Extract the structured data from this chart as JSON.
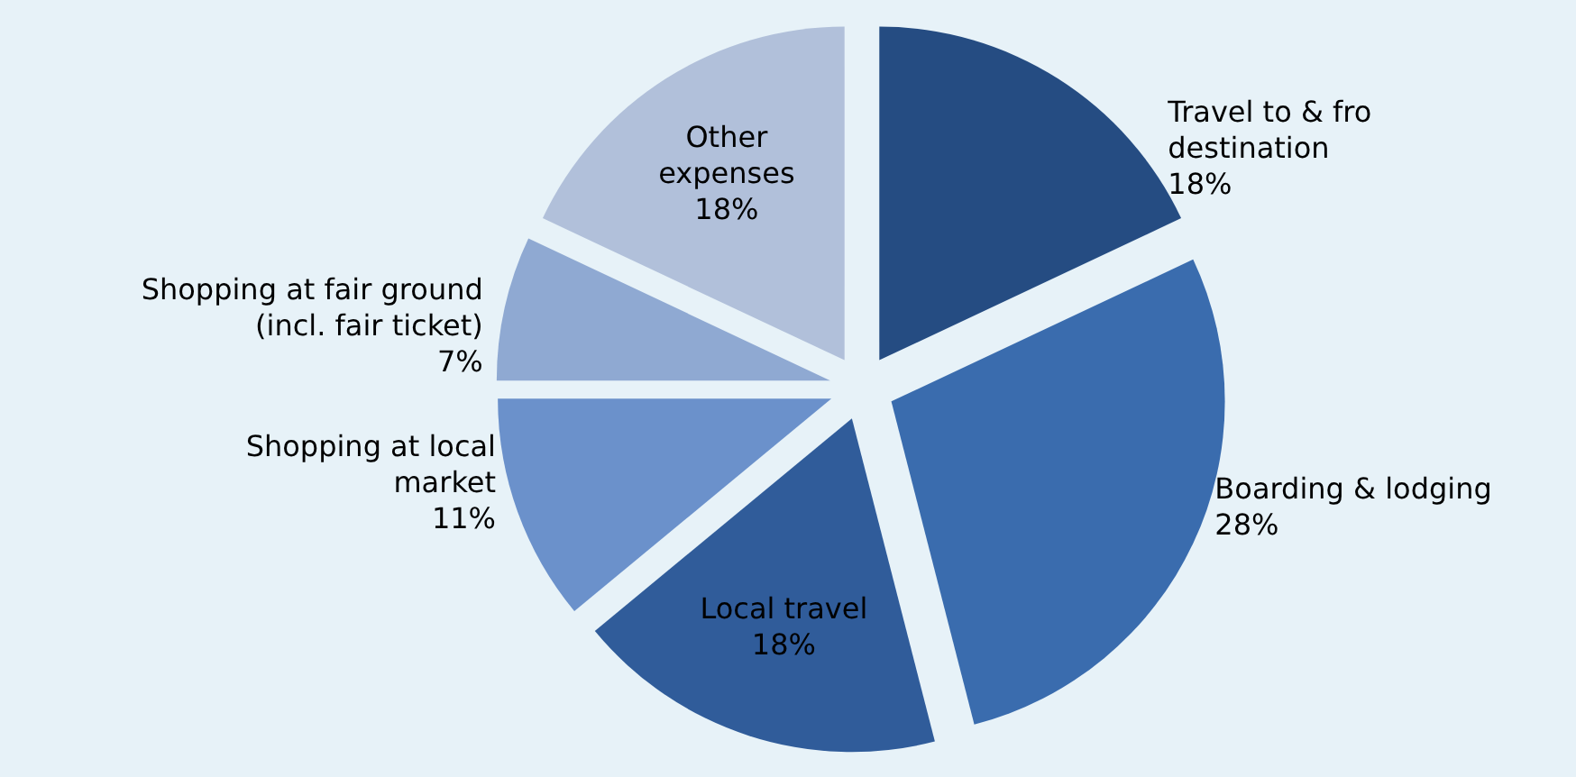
{
  "chart_data": {
    "type": "pie",
    "categories": [
      "Travel to & fro\ndestination",
      "Boarding & lodging",
      "Local travel",
      "Shopping at local\nmarket",
      "Shopping at fair ground\n(incl. fair ticket)",
      "Other\nexpenses"
    ],
    "values": [
      18,
      28,
      18,
      11,
      7,
      18
    ],
    "value_labels": [
      "18%",
      "28%",
      "18%",
      "11%",
      "7%",
      "18%"
    ],
    "colors": [
      "#254c82",
      "#3a6cae",
      "#305c9a",
      "#6b91cb",
      "#8fa9d2",
      "#b1c0da"
    ]
  }
}
